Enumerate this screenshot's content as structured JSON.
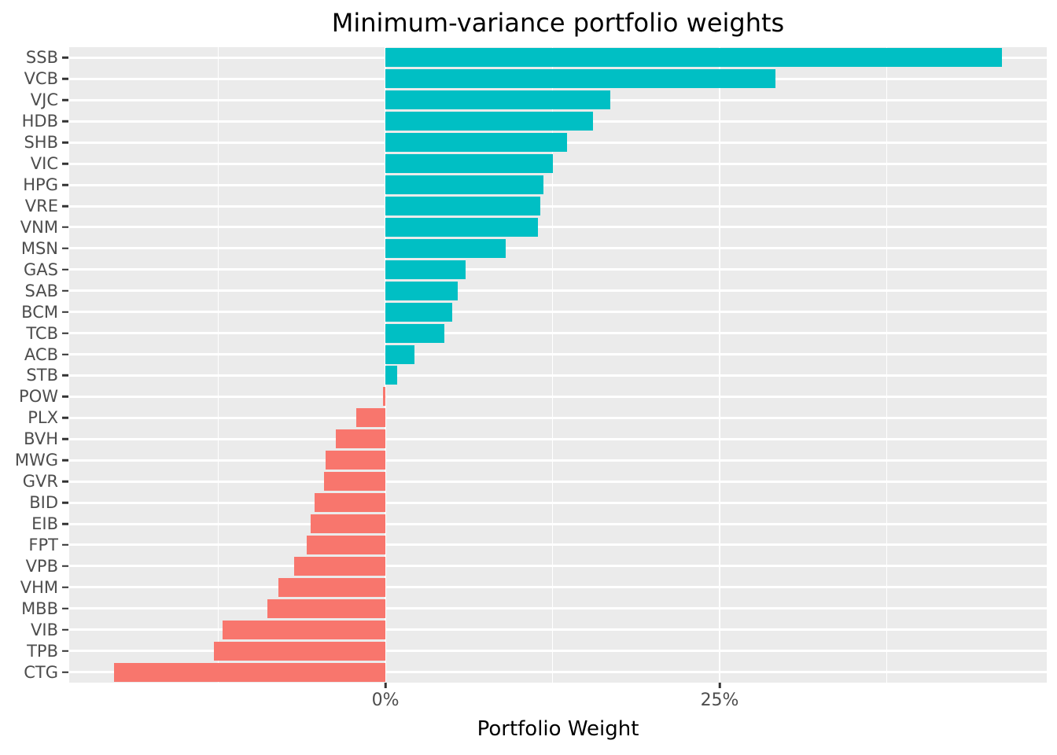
{
  "chart_data": {
    "type": "bar",
    "orientation": "horizontal",
    "title": "Minimum-variance portfolio weights",
    "xlabel": "Portfolio Weight",
    "ylabel": "",
    "unit": "%",
    "categories": [
      "SSB",
      "VCB",
      "VJC",
      "HDB",
      "SHB",
      "VIC",
      "HPG",
      "VRE",
      "VNM",
      "MSN",
      "GAS",
      "SAB",
      "BCM",
      "TCB",
      "ACB",
      "STB",
      "POW",
      "PLX",
      "BVH",
      "MWG",
      "GVR",
      "BID",
      "EIB",
      "FPT",
      "VPB",
      "VHM",
      "MBB",
      "VIB",
      "TPB",
      "CTG"
    ],
    "values": [
      46.1,
      29.2,
      16.8,
      15.5,
      13.6,
      12.5,
      11.8,
      11.6,
      11.4,
      9.0,
      6.0,
      5.4,
      5.0,
      4.4,
      2.2,
      0.9,
      -0.2,
      -2.2,
      -3.7,
      -4.5,
      -4.6,
      -5.3,
      -5.6,
      -5.9,
      -6.8,
      -8.0,
      -8.8,
      -12.2,
      -12.8,
      -20.3
    ],
    "xlim": [
      -23.65,
      49.47
    ],
    "x_major_ticks": [
      {
        "value": 0,
        "label": "0%"
      },
      {
        "value": 25,
        "label": "25%"
      }
    ],
    "x_minor_ticks": [
      -12.5,
      12.5,
      37.5
    ],
    "legend": "none",
    "grid": "on",
    "colors": {
      "positive_bar": "#00BFC4",
      "negative_bar": "#F8766D",
      "panel_background": "#EBEBEB",
      "gridline": "#FFFFFF",
      "tick_label": "#4D4D4D",
      "tick_mark": "#333333",
      "title_text": "#000000"
    }
  }
}
